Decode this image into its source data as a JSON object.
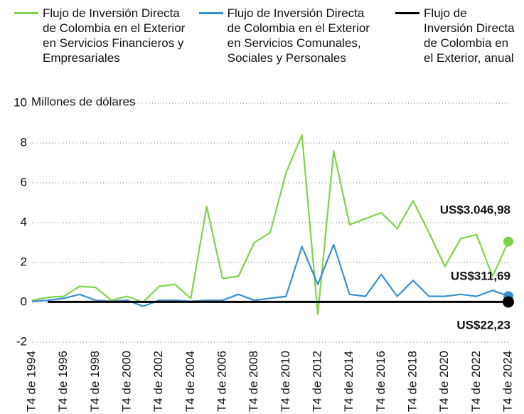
{
  "chart_data": {
    "type": "line",
    "y_axis_label": "Millones de dólares",
    "categories": [
      "T4 de 1994",
      null,
      "T4 de 1996",
      null,
      "T4 de 1998",
      null,
      "T4 de 2000",
      null,
      "T4 de 2002",
      null,
      "T4 de 2004",
      null,
      "T4 de 2006",
      null,
      "T4 de 2008",
      null,
      "T4 de 2010",
      null,
      "T4 de 2012",
      null,
      "T4 de 2014",
      null,
      "T4 de 2016",
      null,
      "T4 de 2018",
      null,
      "T4 de 2020",
      null,
      "T4 de 2022",
      null,
      "T4 de 2024"
    ],
    "series": [
      {
        "name": "Flujo de Inversión Directa de Colombia en el Exterior en Servicios Financieros y Empresariales",
        "color": "#7dd44a",
        "values": [
          0.1,
          0.25,
          0.3,
          0.8,
          0.75,
          0.1,
          0.3,
          0.0,
          0.8,
          0.9,
          0.2,
          4.8,
          1.2,
          1.3,
          3.0,
          3.5,
          6.5,
          8.4,
          -0.6,
          7.6,
          3.9,
          4.2,
          4.5,
          3.7,
          5.1,
          3.5,
          1.8,
          3.2,
          3.4,
          1.3,
          3.05
        ]
      },
      {
        "name": "Flujo de Inversión Directa de Colombia en el Exterior en Servicios Comunales, Sociales y Personales",
        "color": "#3a8fd0",
        "values": [
          0.05,
          0.1,
          0.2,
          0.4,
          0.1,
          0.05,
          0.1,
          -0.2,
          0.1,
          0.1,
          0.05,
          0.1,
          0.1,
          0.4,
          0.1,
          0.2,
          0.3,
          2.8,
          0.9,
          2.9,
          0.4,
          0.3,
          1.4,
          0.3,
          1.1,
          0.3,
          0.3,
          0.4,
          0.3,
          0.6,
          0.31
        ]
      },
      {
        "name": "Flujo de Inversión Directa de Colombia en el Exterior, anual",
        "color": "#000000",
        "values": [
          null,
          0.02,
          0.02,
          0.02,
          0.02,
          0.02,
          0.02,
          0.02,
          0.02,
          0.02,
          0.02,
          0.02,
          0.02,
          0.02,
          0.02,
          0.02,
          0.02,
          0.02,
          0.02,
          0.02,
          0.02,
          0.02,
          0.02,
          0.02,
          0.02,
          0.02,
          0.02,
          0.02,
          0.02,
          0.02,
          0.02
        ]
      }
    ],
    "annotations": [
      "US$3.046,98",
      "US$311,69",
      "US$22,23"
    ],
    "ylim": [
      -2,
      10
    ],
    "yticks": [
      -2,
      0,
      2,
      4,
      6,
      8,
      10
    ],
    "grid": true
  }
}
